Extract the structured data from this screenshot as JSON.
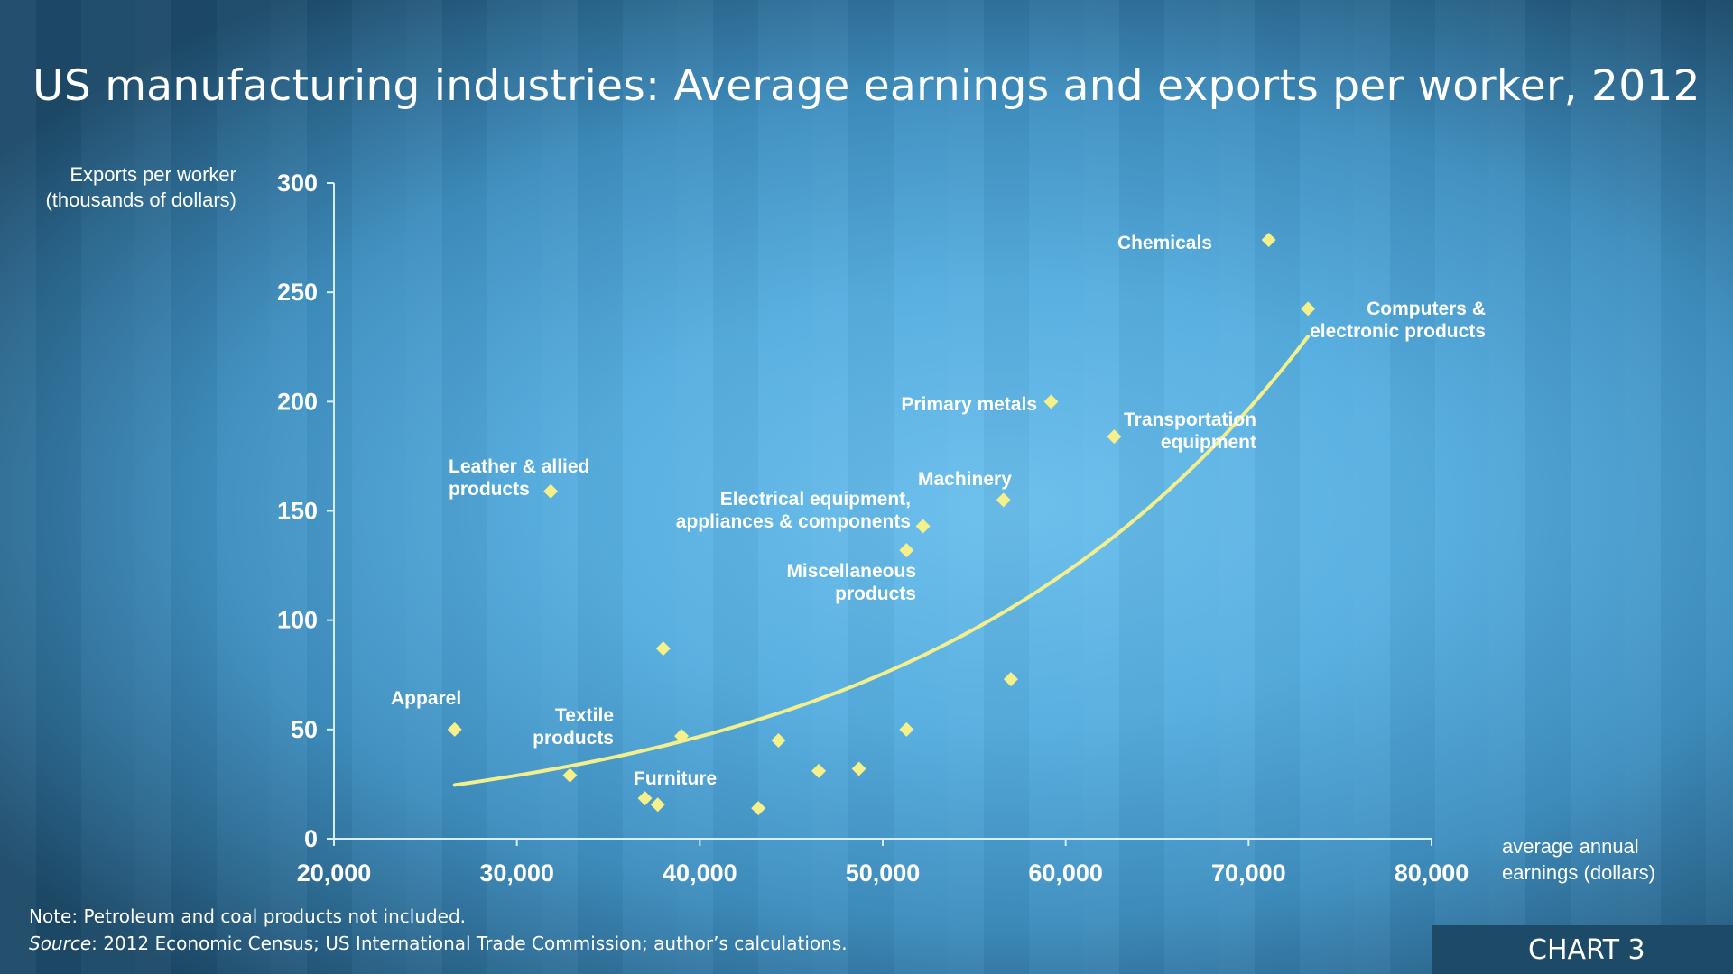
{
  "chart_data": {
    "type": "scatter",
    "title": "US manufacturing industries:  Average earnings and exports per worker, 2012",
    "ylabel_lines": [
      "Exports per worker",
      "(thousands of dollars)"
    ],
    "xlabel_lines": [
      "average annual",
      "earnings (dollars)"
    ],
    "xlim": [
      20000,
      80000
    ],
    "ylim": [
      0,
      300
    ],
    "xticks": [
      20000,
      30000,
      40000,
      50000,
      60000,
      70000,
      80000
    ],
    "xtick_labels": [
      "20,000",
      "30,000",
      "40,000",
      "50,000",
      "60,000",
      "70,000",
      "80,000"
    ],
    "yticks": [
      0,
      50,
      100,
      150,
      200,
      250,
      300
    ],
    "ytick_labels": [
      "0",
      "50",
      "100",
      "150",
      "200",
      "250",
      "300"
    ],
    "grid": false,
    "points": [
      {
        "x": 26600,
        "y": 50,
        "label": "Apparel"
      },
      {
        "x": 32900,
        "y": 29,
        "label": "Textile products",
        "label_lines": [
          "Textile",
          "products"
        ]
      },
      {
        "x": 31850,
        "y": 159,
        "label": "Leather & allied products",
        "label_lines": [
          "Leather & allied",
          "products"
        ]
      },
      {
        "x": 37000,
        "y": 18.5,
        "label": "Furniture"
      },
      {
        "x": 37700,
        "y": 15.6
      },
      {
        "x": 38000,
        "y": 87
      },
      {
        "x": 39000,
        "y": 47
      },
      {
        "x": 43200,
        "y": 14
      },
      {
        "x": 44300,
        "y": 45
      },
      {
        "x": 46500,
        "y": 31
      },
      {
        "x": 48700,
        "y": 32
      },
      {
        "x": 51300,
        "y": 50
      },
      {
        "x": 51300,
        "y": 132,
        "label": "Miscellaneous products",
        "label_lines": [
          "Miscellaneous",
          "products"
        ]
      },
      {
        "x": 52200,
        "y": 143,
        "label": "Electrical equipment, appliances & components",
        "label_lines": [
          "Electrical equipment,",
          "appliances & components"
        ]
      },
      {
        "x": 56600,
        "y": 155,
        "label": "Machinery"
      },
      {
        "x": 57000,
        "y": 73
      },
      {
        "x": 59200,
        "y": 200,
        "label": "Primary metals"
      },
      {
        "x": 62650,
        "y": 184,
        "label": "Transportation equipment",
        "label_lines": [
          "Transportation",
          "equipment"
        ]
      },
      {
        "x": 71100,
        "y": 274,
        "label": "Chemicals"
      },
      {
        "x": 73250,
        "y": 242.5,
        "label": "Computers & electronic products",
        "label_lines": [
          "Computers &",
          "electronic products"
        ]
      }
    ],
    "trendline": {
      "type": "exponential",
      "a": 24.6,
      "b": 4.79e-05,
      "x0": 26600,
      "x_range": [
        26600,
        73250
      ]
    },
    "colors": {
      "points": "#f6f08a",
      "trend": "#f3ef8e",
      "axis": "#d8eefa"
    }
  },
  "footer": {
    "note": "Note: Petroleum and coal products not included.",
    "source_label": "Source",
    "source_text": ": 2012 Economic Census; US International Trade Commission; author’s calculations.",
    "chart_tag": "CHART 3"
  }
}
